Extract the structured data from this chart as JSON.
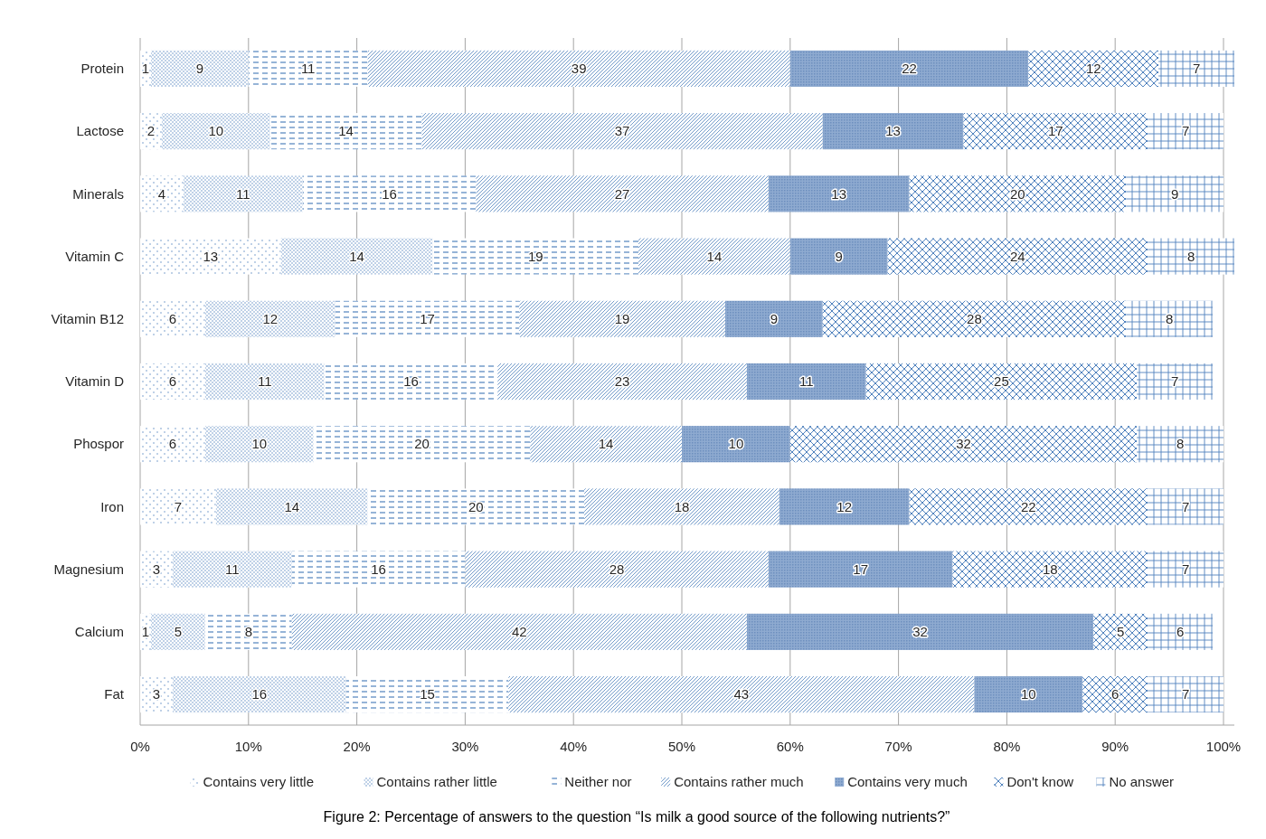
{
  "chart_data": {
    "type": "bar",
    "orientation": "horizontal",
    "stacked": true,
    "title": "Figure 2: Percentage of answers to the question “Is milk a good source of the following nutrients?”",
    "categories": [
      "Protein",
      "Lactose",
      "Minerals",
      "Vitamin C",
      "Vitamin B12",
      "Vitamin D",
      "Phospor",
      "Iron",
      "Magnesium",
      "Calcium",
      "Fat"
    ],
    "series": [
      {
        "name": "Contains very little",
        "color": "#4f81bd",
        "values": [
          1,
          2,
          4,
          13,
          6,
          6,
          6,
          7,
          3,
          1,
          3
        ]
      },
      {
        "name": "Contains rather little",
        "color": "#4f81bd",
        "values": [
          9,
          10,
          11,
          14,
          12,
          11,
          10,
          14,
          11,
          5,
          16
        ]
      },
      {
        "name": "Neither nor",
        "color": "#4f81bd",
        "values": [
          11,
          14,
          16,
          19,
          17,
          16,
          20,
          20,
          16,
          8,
          15
        ]
      },
      {
        "name": "Contains rather much",
        "color": "#4f81bd",
        "values": [
          39,
          37,
          27,
          14,
          19,
          23,
          14,
          18,
          28,
          42,
          43
        ]
      },
      {
        "name": "Contains very much",
        "color": "#8eaad0",
        "values": [
          22,
          13,
          13,
          9,
          9,
          11,
          10,
          12,
          17,
          32,
          10
        ]
      },
      {
        "name": "Don't know",
        "color": "#4f81bd",
        "values": [
          12,
          17,
          20,
          24,
          28,
          25,
          32,
          22,
          18,
          5,
          6
        ]
      },
      {
        "name": "No answer",
        "color": "#4f81bd",
        "values": [
          7,
          7,
          9,
          8,
          8,
          7,
          8,
          7,
          7,
          6,
          7
        ]
      }
    ],
    "xlim": [
      0,
      101
    ],
    "xticks": [
      {
        "value": 0,
        "label": "0%"
      },
      {
        "value": 10,
        "label": "10%"
      },
      {
        "value": 20,
        "label": "20%"
      },
      {
        "value": 30,
        "label": "30%"
      },
      {
        "value": 40,
        "label": "40%"
      },
      {
        "value": 50,
        "label": "50%"
      },
      {
        "value": 60,
        "label": "60%"
      },
      {
        "value": 70,
        "label": "70%"
      },
      {
        "value": 80,
        "label": "80%"
      },
      {
        "value": 90,
        "label": "90%"
      },
      {
        "value": 100,
        "label": "100%"
      }
    ],
    "grid": "x",
    "legend": "bottom",
    "data_labels": true
  }
}
